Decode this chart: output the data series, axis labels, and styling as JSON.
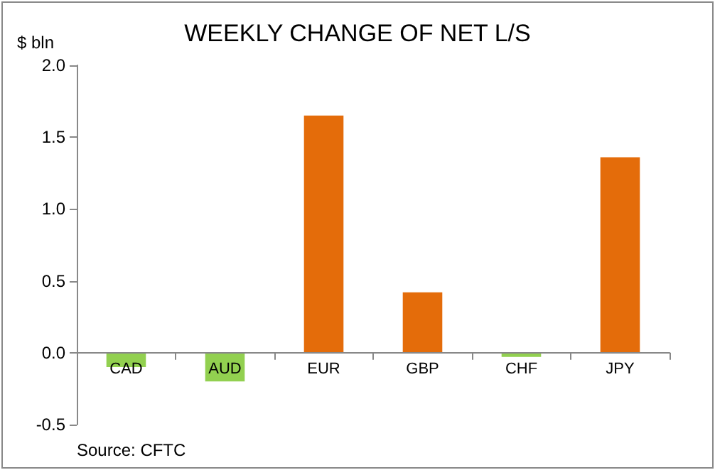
{
  "chart_data": {
    "type": "bar",
    "title": "WEEKLY CHANGE OF NET L/S",
    "ylabel": "$ bln",
    "categories": [
      "CAD",
      "AUD",
      "EUR",
      "GBP",
      "CHF",
      "JPY"
    ],
    "values": [
      -0.1,
      -0.2,
      1.65,
      0.42,
      -0.03,
      1.36
    ],
    "colors": [
      "#92d050",
      "#92d050",
      "#e46c0a",
      "#e46c0a",
      "#92d050",
      "#e46c0a"
    ],
    "ylim": [
      -0.5,
      2.0
    ],
    "yticks": [
      {
        "value": -0.5,
        "label": "-0.5"
      },
      {
        "value": 0,
        "label": "0.0"
      },
      {
        "value": 0.5,
        "label": "0.5"
      },
      {
        "value": 1,
        "label": "1.0"
      },
      {
        "value": 1.5,
        "label": "1.5"
      },
      {
        "value": 2,
        "label": "2.0"
      }
    ],
    "grid": false,
    "annotations": [
      "Source: CFTC"
    ]
  }
}
